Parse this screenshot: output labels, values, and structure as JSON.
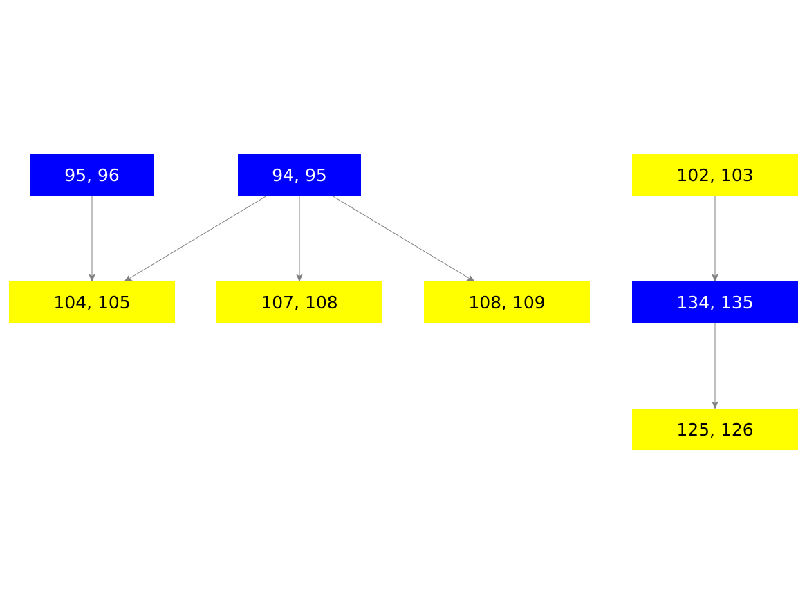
{
  "colors": {
    "blue_node": "#0000ff",
    "yellow_node": "#ffff00",
    "edge": "#808080"
  },
  "nodes": [
    {
      "id": "n1",
      "label": "95, 96",
      "color": "blue"
    },
    {
      "id": "n2",
      "label": "94, 95",
      "color": "blue"
    },
    {
      "id": "n3",
      "label": "102, 103",
      "color": "yellow"
    },
    {
      "id": "n4",
      "label": "104, 105",
      "color": "yellow"
    },
    {
      "id": "n5",
      "label": "107, 108",
      "color": "yellow"
    },
    {
      "id": "n6",
      "label": "108, 109",
      "color": "yellow"
    },
    {
      "id": "n7",
      "label": "134, 135",
      "color": "blue"
    },
    {
      "id": "n8",
      "label": "125, 126",
      "color": "yellow"
    }
  ],
  "edges": [
    {
      "from": "95, 96",
      "to": "104, 105"
    },
    {
      "from": "94, 95",
      "to": "104, 105"
    },
    {
      "from": "94, 95",
      "to": "107, 108"
    },
    {
      "from": "94, 95",
      "to": "108, 109"
    },
    {
      "from": "102, 103",
      "to": "134, 135"
    },
    {
      "from": "134, 135",
      "to": "125, 126"
    }
  ]
}
